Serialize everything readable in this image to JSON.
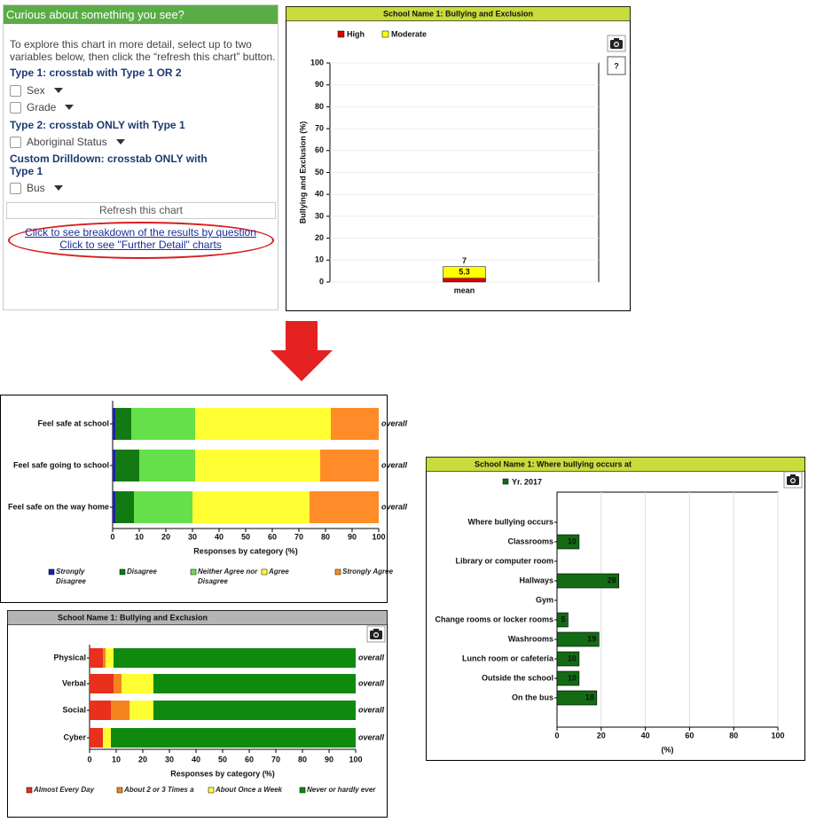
{
  "panel": {
    "header": "Curious about something you see?",
    "intro": "To explore this chart in more detail, select up to two variables below, then click the “refresh this chart” button.",
    "groups": [
      {
        "heading": "Type 1: crosstab with Type 1 OR 2",
        "options": [
          "Sex",
          "Grade"
        ]
      },
      {
        "heading": "Type 2: crosstab ONLY with Type 1",
        "options": [
          "Aboriginal Status"
        ]
      },
      {
        "heading": "Custom Drilldown: crosstab ONLY with Type 1",
        "options": [
          "Bus"
        ]
      }
    ],
    "button": "Refresh this chart",
    "links": [
      "Click to see breakdown of the results by question",
      "Click to see \"Further Detail\" charts"
    ]
  },
  "chart_data": [
    {
      "type": "bar",
      "stacked": true,
      "horizontal": false,
      "title": "School Name 1: Bullying and Exclusion",
      "header_color": "#c8dc3c",
      "y_label": "Bullying and Exclusion (%)",
      "categories": [
        "mean"
      ],
      "series": [
        {
          "name": "High",
          "color": "#e00000",
          "values": [
            1.7
          ]
        },
        {
          "name": "Moderate",
          "color": "#ffff00",
          "values": [
            5.3
          ],
          "value_labels": [
            "5.3"
          ]
        }
      ],
      "total_labels": [
        "7"
      ],
      "ylim": [
        0,
        100
      ],
      "yticks": [
        0,
        10,
        20,
        30,
        40,
        50,
        60,
        70,
        80,
        90,
        100
      ],
      "grid": true
    },
    {
      "type": "bar",
      "stacked": true,
      "horizontal": true,
      "x_label": "Responses by category (%)",
      "categories": [
        "Feel safe at school",
        "Feel safe going to school",
        "Feel safe on the way home"
      ],
      "right_labels": [
        "overall",
        "overall",
        "overall"
      ],
      "series": [
        {
          "name": "Strongly Disagree",
          "color": "#1f1fb4",
          "values": [
            1,
            1,
            1
          ]
        },
        {
          "name": "Disagree",
          "color": "#137a13",
          "values": [
            6,
            9,
            7
          ]
        },
        {
          "name": "Neither Agree nor Disagree",
          "color": "#66e04a",
          "values": [
            24,
            21,
            22
          ]
        },
        {
          "name": "Agree",
          "color": "#ffff33",
          "values": [
            51,
            47,
            44
          ]
        },
        {
          "name": "Strongly Agree",
          "color": "#ff8c28",
          "values": [
            18,
            22,
            26
          ]
        }
      ],
      "xlim": [
        0,
        100
      ],
      "xticks": [
        0,
        10,
        20,
        30,
        40,
        50,
        60,
        70,
        80,
        90,
        100
      ]
    },
    {
      "type": "bar",
      "stacked": true,
      "horizontal": true,
      "title": "School Name 1: Bullying and Exclusion",
      "header_color": "#b4b4b4",
      "x_label": "Responses by category (%)",
      "categories": [
        "Physical",
        "Verbal",
        "Social",
        "Cyber"
      ],
      "right_labels": [
        "overall",
        "overall",
        "overall",
        "overall"
      ],
      "series": [
        {
          "name": "Almost Every Day",
          "color": "#e8301c",
          "values": [
            5,
            9,
            8,
            5
          ]
        },
        {
          "name": "About 2 or 3 Times a",
          "color": "#f5841f",
          "values": [
            1,
            3,
            7,
            0
          ]
        },
        {
          "name": "About Once a Week",
          "color": "#ffff33",
          "values": [
            3,
            12,
            9,
            3
          ]
        },
        {
          "name": "Never or hardly ever",
          "color": "#0f8a0f",
          "values": [
            91,
            76,
            76,
            92
          ]
        }
      ],
      "xlim": [
        0,
        100
      ],
      "xticks": [
        0,
        10,
        20,
        30,
        40,
        50,
        60,
        70,
        80,
        90,
        100
      ]
    },
    {
      "type": "bar",
      "stacked": false,
      "horizontal": true,
      "title": "School Name 1: Where bullying occurs at",
      "header_color": "#c8dc3c",
      "x_label": "(%)",
      "categories": [
        "Where bullying occurs",
        "Classrooms",
        "Library or computer room",
        "Hallways",
        "Gym",
        "Change rooms or locker rooms",
        "Washrooms",
        "Lunch room or cafeteria",
        "Outside the school",
        "On the bus"
      ],
      "series": [
        {
          "name": "Yr. 2017",
          "color": "#136b13",
          "values": [
            null,
            10,
            null,
            28,
            null,
            5,
            19,
            10,
            10,
            18
          ]
        }
      ],
      "xlim": [
        0,
        100
      ],
      "xticks": [
        0,
        20,
        40,
        60,
        80,
        100
      ],
      "grid": true
    }
  ]
}
